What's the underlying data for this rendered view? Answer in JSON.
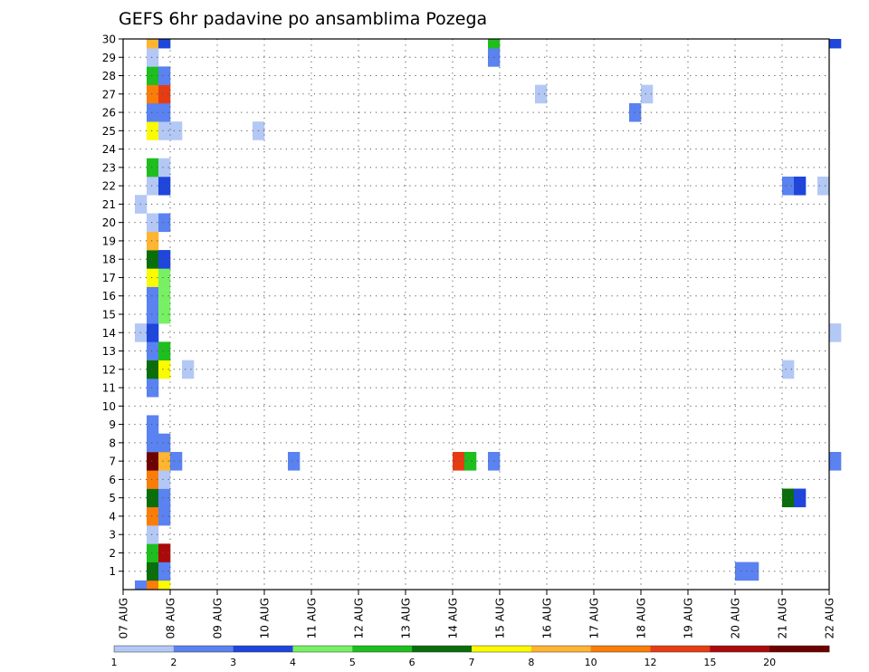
{
  "chart_data": {
    "type": "heatmap",
    "title": "GEFS 6hr padavine po ansamblima Pozega",
    "xlabel": "",
    "ylabel": "",
    "x_ticks": [
      "07 AUG",
      "08 AUG",
      "09 AUG",
      "10 AUG",
      "11 AUG",
      "12 AUG",
      "13 AUG",
      "14 AUG",
      "15 AUG",
      "16 AUG",
      "17 AUG",
      "18 AUG",
      "19 AUG",
      "20 AUG",
      "21 AUG",
      "22 AUG"
    ],
    "y_ticks": [
      "1",
      "2",
      "3",
      "4",
      "5",
      "6",
      "7",
      "8",
      "9",
      "10",
      "11",
      "12",
      "13",
      "14",
      "15",
      "16",
      "17",
      "18",
      "19",
      "20",
      "21",
      "22",
      "23",
      "24",
      "25",
      "26",
      "27",
      "28",
      "29",
      "30"
    ],
    "x_range": [
      "07 AUG 00z",
      "22 AUG 00z"
    ],
    "y_range": [
      0,
      30
    ],
    "time_step_hours": 6,
    "grid": "dotted",
    "legend": {
      "position": "bottom",
      "labels": [
        "1",
        "2",
        "3",
        "4",
        "5",
        "6",
        "7",
        "8",
        "10",
        "12",
        "15",
        "20"
      ],
      "colors": [
        "#b4c8f5",
        "#5a82f0",
        "#1e46dc",
        "#78f064",
        "#1ebe1e",
        "#0a6e0a",
        "#fafa00",
        "#ffb432",
        "#fa7d0a",
        "#e63c14",
        "#aa0a0a",
        "#6e0000"
      ]
    },
    "colors": {
      "1": "#b4c8f5",
      "2": "#5a82f0",
      "3": "#1e46dc",
      "4": "#78f064",
      "5": "#1ebe1e",
      "6": "#0a6e0a",
      "7": "#fafa00",
      "8": "#ffb432",
      "10": "#fa7d0a",
      "12": "#e63c14",
      "15": "#aa0a0a",
      "20": "#6e0000"
    },
    "cells": [
      {
        "m": 0,
        "t": "07 AUG 06z",
        "v": 2
      },
      {
        "m": 0,
        "t": "07 AUG 12z",
        "v": 10
      },
      {
        "m": 0,
        "t": "07 AUG 18z",
        "v": 7
      },
      {
        "m": 1,
        "t": "07 AUG 12z",
        "v": 6
      },
      {
        "m": 1,
        "t": "07 AUG 18z",
        "v": 2
      },
      {
        "m": 1,
        "t": "20 AUG 00z",
        "v": 2
      },
      {
        "m": 1,
        "t": "20 AUG 06z",
        "v": 2
      },
      {
        "m": 2,
        "t": "07 AUG 12z",
        "v": 5
      },
      {
        "m": 2,
        "t": "07 AUG 18z",
        "v": 15
      },
      {
        "m": 3,
        "t": "07 AUG 12z",
        "v": 1
      },
      {
        "m": 4,
        "t": "07 AUG 12z",
        "v": 10
      },
      {
        "m": 4,
        "t": "07 AUG 18z",
        "v": 2
      },
      {
        "m": 5,
        "t": "07 AUG 12z",
        "v": 6
      },
      {
        "m": 5,
        "t": "07 AUG 18z",
        "v": 2
      },
      {
        "m": 5,
        "t": "21 AUG 00z",
        "v": 6
      },
      {
        "m": 5,
        "t": "21 AUG 06z",
        "v": 3
      },
      {
        "m": 6,
        "t": "07 AUG 12z",
        "v": 10
      },
      {
        "m": 6,
        "t": "07 AUG 18z",
        "v": 1
      },
      {
        "m": 7,
        "t": "07 AUG 12z",
        "v": 20
      },
      {
        "m": 7,
        "t": "07 AUG 18z",
        "v": 8
      },
      {
        "m": 7,
        "t": "08 AUG 00z",
        "v": 2
      },
      {
        "m": 7,
        "t": "10 AUG 12z",
        "v": 2
      },
      {
        "m": 7,
        "t": "14 AUG 18z",
        "v": 2
      },
      {
        "m": 7,
        "t": "14 AUG 00z",
        "v": 12
      },
      {
        "m": 7,
        "t": "14 AUG 06z",
        "v": 5
      },
      {
        "m": 7,
        "t": "22 AUG 00z",
        "v": 2
      },
      {
        "m": 8,
        "t": "07 AUG 12z",
        "v": 2
      },
      {
        "m": 8,
        "t": "07 AUG 18z",
        "v": 2
      },
      {
        "m": 9,
        "t": "07 AUG 12z",
        "v": 2
      },
      {
        "m": 11,
        "t": "07 AUG 12z",
        "v": 2
      },
      {
        "m": 12,
        "t": "07 AUG 12z",
        "v": 6
      },
      {
        "m": 12,
        "t": "07 AUG 18z",
        "v": 7
      },
      {
        "m": 12,
        "t": "08 AUG 06z",
        "v": 1
      },
      {
        "m": 12,
        "t": "21 AUG 00z",
        "v": 1
      },
      {
        "m": 13,
        "t": "07 AUG 12z",
        "v": 2
      },
      {
        "m": 13,
        "t": "07 AUG 18z",
        "v": 5
      },
      {
        "m": 14,
        "t": "07 AUG 06z",
        "v": 1
      },
      {
        "m": 14,
        "t": "07 AUG 12z",
        "v": 3
      },
      {
        "m": 14,
        "t": "22 AUG 00z",
        "v": 1
      },
      {
        "m": 15,
        "t": "07 AUG 12z",
        "v": 2
      },
      {
        "m": 15,
        "t": "07 AUG 18z",
        "v": 4
      },
      {
        "m": 16,
        "t": "07 AUG 12z",
        "v": 2
      },
      {
        "m": 16,
        "t": "07 AUG 18z",
        "v": 4
      },
      {
        "m": 17,
        "t": "07 AUG 12z",
        "v": 7
      },
      {
        "m": 17,
        "t": "07 AUG 18z",
        "v": 4
      },
      {
        "m": 18,
        "t": "07 AUG 12z",
        "v": 6
      },
      {
        "m": 18,
        "t": "07 AUG 18z",
        "v": 3
      },
      {
        "m": 19,
        "t": "07 AUG 12z",
        "v": 8
      },
      {
        "m": 20,
        "t": "07 AUG 12z",
        "v": 1
      },
      {
        "m": 20,
        "t": "07 AUG 18z",
        "v": 2
      },
      {
        "m": 21,
        "t": "07 AUG 06z",
        "v": 1
      },
      {
        "m": 22,
        "t": "07 AUG 12z",
        "v": 1
      },
      {
        "m": 22,
        "t": "07 AUG 18z",
        "v": 3
      },
      {
        "m": 22,
        "t": "21 AUG 00z",
        "v": 2
      },
      {
        "m": 22,
        "t": "21 AUG 06z",
        "v": 3
      },
      {
        "m": 22,
        "t": "21 AUG 18z",
        "v": 1
      },
      {
        "m": 23,
        "t": "07 AUG 12z",
        "v": 5
      },
      {
        "m": 23,
        "t": "07 AUG 18z",
        "v": 1
      },
      {
        "m": 25,
        "t": "07 AUG 12z",
        "v": 7
      },
      {
        "m": 25,
        "t": "07 AUG 18z",
        "v": 1
      },
      {
        "m": 25,
        "t": "08 AUG 00z",
        "v": 1
      },
      {
        "m": 25,
        "t": "09 AUG 18z",
        "v": 1
      },
      {
        "m": 26,
        "t": "07 AUG 12z",
        "v": 2
      },
      {
        "m": 26,
        "t": "07 AUG 18z",
        "v": 2
      },
      {
        "m": 26,
        "t": "17 AUG 18z",
        "v": 2
      },
      {
        "m": 27,
        "t": "07 AUG 12z",
        "v": 10
      },
      {
        "m": 27,
        "t": "07 AUG 18z",
        "v": 12
      },
      {
        "m": 27,
        "t": "15 AUG 18z",
        "v": 1
      },
      {
        "m": 27,
        "t": "18 AUG 00z",
        "v": 1
      },
      {
        "m": 28,
        "t": "07 AUG 12z",
        "v": 5
      },
      {
        "m": 28,
        "t": "07 AUG 18z",
        "v": 2
      },
      {
        "m": 29,
        "t": "07 AUG 12z",
        "v": 1
      },
      {
        "m": 29,
        "t": "14 AUG 18z",
        "v": 2
      },
      {
        "m": 30,
        "t": "07 AUG 12z",
        "v": 8
      },
      {
        "m": 30,
        "t": "07 AUG 18z",
        "v": 3
      },
      {
        "m": 30,
        "t": "14 AUG 18z",
        "v": 5
      },
      {
        "m": 30,
        "t": "22 AUG 00z",
        "v": 3
      }
    ]
  }
}
